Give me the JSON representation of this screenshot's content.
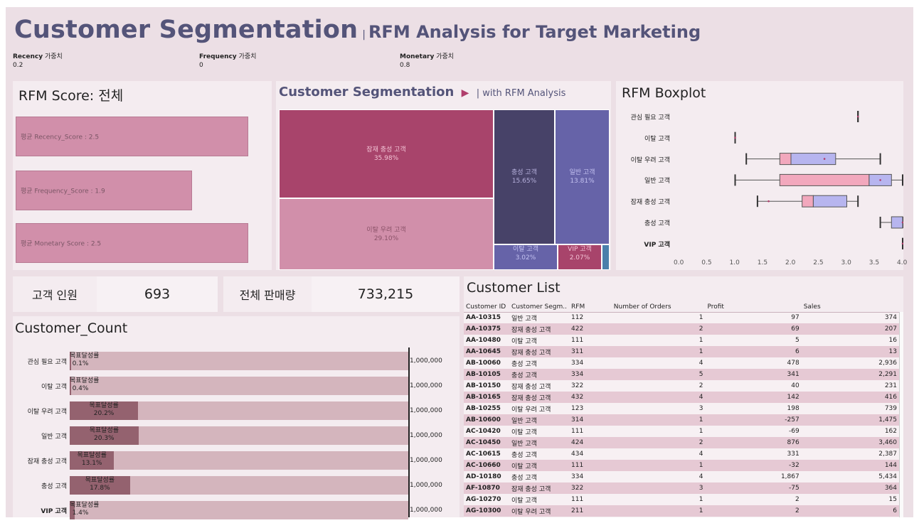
{
  "title": {
    "main": "Customer Segmentation",
    "separator": "|",
    "sub": "RFM Analysis for Target Marketing"
  },
  "params": [
    {
      "label": "Recency",
      "suffix": "가중치",
      "value": "0.2"
    },
    {
      "label": "Frequency",
      "suffix": "가중치",
      "value": "0"
    },
    {
      "label": "Monetary",
      "suffix": "가중치",
      "value": "0.8"
    }
  ],
  "rfm_score": {
    "title": "RFM Score: 전체",
    "max_score": 2.6,
    "bars": [
      {
        "label": "평균 Recency_Score : 2.5",
        "value": 2.5
      },
      {
        "label": "평균 Frequency_Score : 1.9",
        "value": 1.9
      },
      {
        "label": "평균 Monetary Score : 2.5",
        "value": 2.5
      }
    ]
  },
  "treemap": {
    "title": "Customer Segmentation",
    "arrow": "▶",
    "subtitle": "| with RFM Analysis",
    "cells": [
      {
        "name": "잠재 충성 고객",
        "pct": "35.98%",
        "color": "#a8446b",
        "text_color": "#f2c2d4"
      },
      {
        "name": "이탈 우려 고객",
        "pct": "29.10%",
        "color": "#d18faa",
        "text_color": "#8a5268"
      },
      {
        "name": "충성 고객",
        "pct": "15.65%",
        "color": "#474268",
        "text_color": "#b6b0dc"
      },
      {
        "name": "일반 고객",
        "pct": "13.81%",
        "color": "#6663a8",
        "text_color": "#c3c1f0"
      },
      {
        "name": "이탈 고객",
        "pct": "3.02%",
        "color": "#6663a8",
        "text_color": "#c3c1f0"
      },
      {
        "name": "VIP 고객",
        "pct": "2.07%",
        "color": "#a8446b",
        "text_color": "#f2c2d4"
      },
      {
        "name": "",
        "pct": "",
        "color": "#4a7fab",
        "text_color": "#ffffff"
      }
    ]
  },
  "boxplot": {
    "title": "RFM Boxplot",
    "axis_ticks": [
      "0.0",
      "0.5",
      "1.0",
      "1.5",
      "2.0",
      "2.5",
      "3.0",
      "3.5",
      "4.0"
    ],
    "rows": [
      {
        "name": "관심 필요 고객",
        "min": 3.2,
        "q1": 3.2,
        "median": 3.2,
        "q3": 3.2,
        "max": 3.2,
        "mean": 3.2
      },
      {
        "name": "이탈 고객",
        "min": 1.0,
        "q1": 1.0,
        "median": 1.0,
        "q3": 1.0,
        "max": 1.0,
        "mean": 1.0
      },
      {
        "name": "이탈 우려 고객",
        "min": 1.2,
        "q1": 1.8,
        "median": 2.0,
        "q3": 2.8,
        "max": 3.6,
        "mean": 2.6
      },
      {
        "name": "일반 고객",
        "min": 1.0,
        "q1": 1.8,
        "median": 3.4,
        "q3": 3.8,
        "max": 4.0,
        "mean": 3.6
      },
      {
        "name": "잠재 충성 고객",
        "min": 1.4,
        "q1": 2.2,
        "median": 2.4,
        "q3": 3.0,
        "max": 3.2,
        "mean": 1.6
      },
      {
        "name": "충성 고객",
        "min": 3.6,
        "q1": 3.8,
        "median": 3.8,
        "q3": 4.0,
        "max": 4.0,
        "mean": 4.0
      },
      {
        "name": "VIP 고객",
        "min": 4.0,
        "q1": 4.0,
        "median": 4.0,
        "q3": 4.0,
        "max": 4.0,
        "mean": 4.0
      }
    ]
  },
  "kpis": {
    "count_label": "고객 인원",
    "count_value": "693",
    "sales_label": "전체 판매량",
    "sales_value": "733,215"
  },
  "customer_count": {
    "title": "Customer_Count",
    "target_label": "1,000,000",
    "rate_label": "목표달성률",
    "rows": [
      {
        "name": "관심 필요 고객",
        "rate": 0.1,
        "rate_text": "0.1%"
      },
      {
        "name": "이탈 고객",
        "rate": 0.4,
        "rate_text": "0.4%"
      },
      {
        "name": "이탈 우려 고객",
        "rate": 20.2,
        "rate_text": "20.2%"
      },
      {
        "name": "일반 고객",
        "rate": 20.3,
        "rate_text": "20.3%"
      },
      {
        "name": "잠재 충성 고객",
        "rate": 13.1,
        "rate_text": "13.1%"
      },
      {
        "name": "충성 고객",
        "rate": 17.8,
        "rate_text": "17.8%"
      },
      {
        "name": "VIP 고객",
        "rate": 1.4,
        "rate_text": "1.4%"
      }
    ]
  },
  "customer_list": {
    "title": "Customer List",
    "columns": [
      "Customer ID",
      "Customer Segm..",
      "RFM",
      "Number of Orders",
      "Profit",
      "Sales"
    ],
    "rows": [
      [
        "AA-10315",
        "일반 고객",
        "112",
        "1",
        "97",
        "374"
      ],
      [
        "AA-10375",
        "잠재 충성 고객",
        "422",
        "2",
        "69",
        "207"
      ],
      [
        "AA-10480",
        "이탈 고객",
        "111",
        "1",
        "5",
        "16"
      ],
      [
        "AA-10645",
        "잠재 충성 고객",
        "311",
        "1",
        "6",
        "13"
      ],
      [
        "AB-10060",
        "충성 고객",
        "334",
        "4",
        "478",
        "2,936"
      ],
      [
        "AB-10105",
        "충성 고객",
        "334",
        "5",
        "341",
        "2,291"
      ],
      [
        "AB-10150",
        "잠재 충성 고객",
        "322",
        "2",
        "40",
        "231"
      ],
      [
        "AB-10165",
        "잠재 충성 고객",
        "432",
        "4",
        "142",
        "416"
      ],
      [
        "AB-10255",
        "이탈 우려 고객",
        "123",
        "3",
        "198",
        "739"
      ],
      [
        "AB-10600",
        "일반 고객",
        "314",
        "1",
        "-257",
        "1,475"
      ],
      [
        "AC-10420",
        "이탈 고객",
        "111",
        "1",
        "-69",
        "162"
      ],
      [
        "AC-10450",
        "일반 고객",
        "424",
        "2",
        "876",
        "3,460"
      ],
      [
        "AC-10615",
        "충성 고객",
        "434",
        "4",
        "331",
        "2,387"
      ],
      [
        "AC-10660",
        "이탈 고객",
        "111",
        "1",
        "-32",
        "144"
      ],
      [
        "AD-10180",
        "충성 고객",
        "334",
        "4",
        "1,867",
        "5,434"
      ],
      [
        "AF-10870",
        "잠재 충성 고객",
        "322",
        "3",
        "-75",
        "364"
      ],
      [
        "AG-10270",
        "이탈 고객",
        "111",
        "1",
        "2",
        "15"
      ],
      [
        "AG-10300",
        "이탈 우려 고객",
        "211",
        "1",
        "2",
        "6"
      ]
    ]
  }
}
